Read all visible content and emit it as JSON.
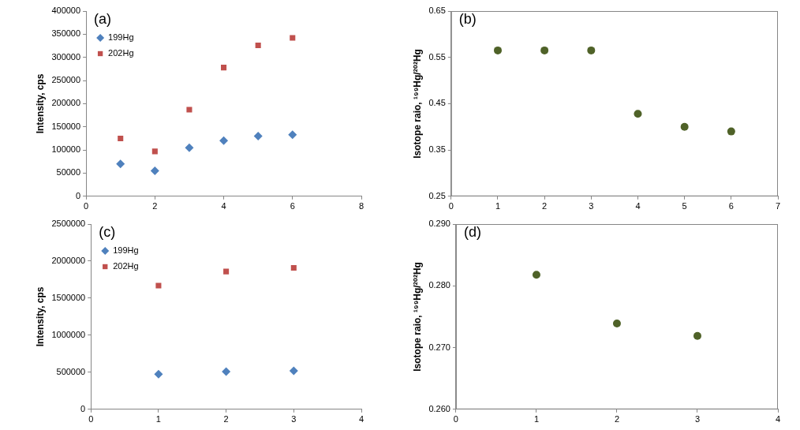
{
  "chart_data": [
    {
      "type": "scatter",
      "title": "(a)",
      "y_label": "Intensity, cps",
      "x": [
        1,
        2,
        3,
        4,
        5,
        6
      ],
      "series": [
        {
          "name": "199Hg",
          "color": "#4f81bd",
          "marker": "diamond",
          "values": [
            70000,
            55000,
            105000,
            120000,
            130000,
            133000
          ]
        },
        {
          "name": "202Hg",
          "color": "#c0504d",
          "marker": "square",
          "values": [
            125000,
            97000,
            187000,
            278000,
            326000,
            342000
          ]
        }
      ],
      "xlim": [
        0,
        8
      ],
      "xticks": [
        0,
        2,
        4,
        6,
        8
      ],
      "ylim": [
        0,
        400000
      ],
      "yticks": [
        0,
        50000,
        100000,
        150000,
        200000,
        250000,
        300000,
        350000,
        400000
      ],
      "grid": false,
      "legend": "upper left"
    },
    {
      "type": "scatter",
      "title": "(b)",
      "y_label": "Isotope raio, ¹⁹⁹Hg/²⁰²Hg",
      "x": [
        1,
        2,
        3,
        4,
        5,
        6
      ],
      "series": [
        {
          "color": "#4f6228",
          "marker": "circle",
          "values": [
            0.565,
            0.565,
            0.565,
            0.428,
            0.4,
            0.39
          ]
        }
      ],
      "xlim": [
        0,
        7
      ],
      "xticks": [
        0,
        1,
        2,
        3,
        4,
        5,
        6,
        7
      ],
      "ylim": [
        0.25,
        0.65
      ],
      "yticks": [
        0.25,
        0.35,
        0.45,
        0.55,
        0.65
      ],
      "grid": false
    },
    {
      "type": "scatter",
      "title": "(c)",
      "y_label": "Intensity, cps",
      "x": [
        1,
        2,
        3
      ],
      "series": [
        {
          "name": "199Hg",
          "color": "#4f81bd",
          "marker": "diamond",
          "values": [
            475000,
            510000,
            520000
          ]
        },
        {
          "name": "202Hg",
          "color": "#c0504d",
          "marker": "square",
          "values": [
            1670000,
            1860000,
            1910000
          ]
        }
      ],
      "xlim": [
        0,
        4
      ],
      "xticks": [
        0,
        1,
        2,
        3,
        4
      ],
      "ylim": [
        0,
        2500000
      ],
      "yticks": [
        0,
        500000,
        1000000,
        1500000,
        2000000,
        2500000
      ],
      "grid": false,
      "legend": "upper left"
    },
    {
      "type": "scatter",
      "title": "(d)",
      "y_label": "Isotope raio, ¹⁹⁹Hg/²⁰²Hg",
      "x": [
        1,
        2,
        3
      ],
      "series": [
        {
          "color": "#4f6228",
          "marker": "circle",
          "values": [
            0.2818,
            0.2739,
            0.2719
          ]
        }
      ],
      "xlim": [
        0,
        4
      ],
      "xticks": [
        0,
        1,
        2,
        3,
        4
      ],
      "ylim": [
        0.26,
        0.29
      ],
      "yticks": [
        {
          "value": 0.26,
          "label": "0.260"
        },
        {
          "value": 0.27,
          "label": "0.270"
        },
        {
          "value": 0.28,
          "label": "0.280"
        },
        {
          "value": 0.29,
          "label": "0.290"
        }
      ],
      "grid": false
    }
  ]
}
